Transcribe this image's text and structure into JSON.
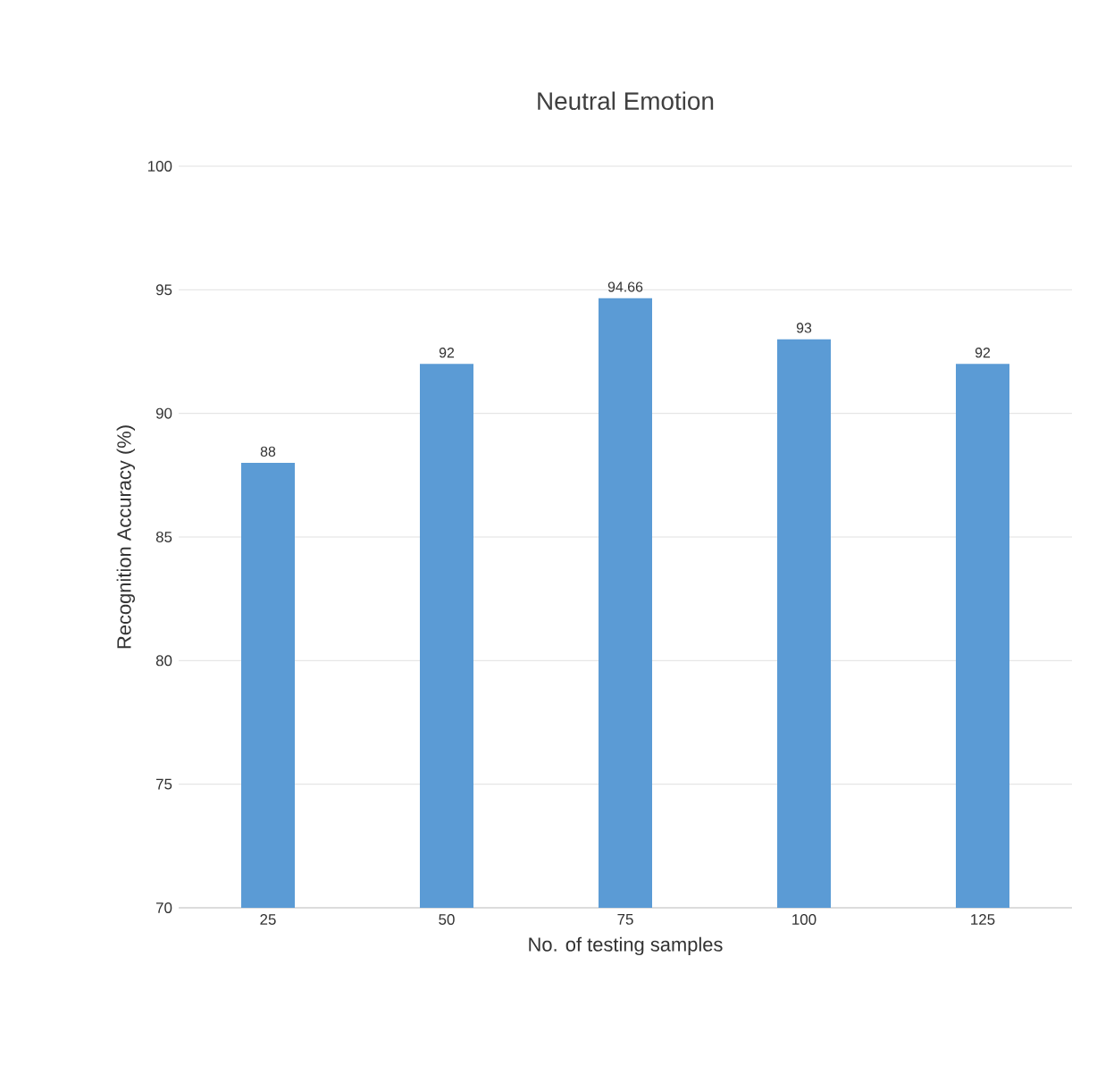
{
  "chart_data": {
    "type": "bar",
    "title": "Neutral Emotion",
    "xlabel": "No. of testing samples",
    "ylabel": "Recognition Accuracy (%)",
    "categories": [
      "25",
      "50",
      "75",
      "100",
      "125"
    ],
    "values": [
      88,
      92,
      94.66,
      93,
      92
    ],
    "color": "#5b9bd5",
    "ylim": [
      70,
      100
    ],
    "yticks": [
      70,
      75,
      80,
      85,
      90,
      95,
      100
    ],
    "grid": "y",
    "data_labels": true
  }
}
